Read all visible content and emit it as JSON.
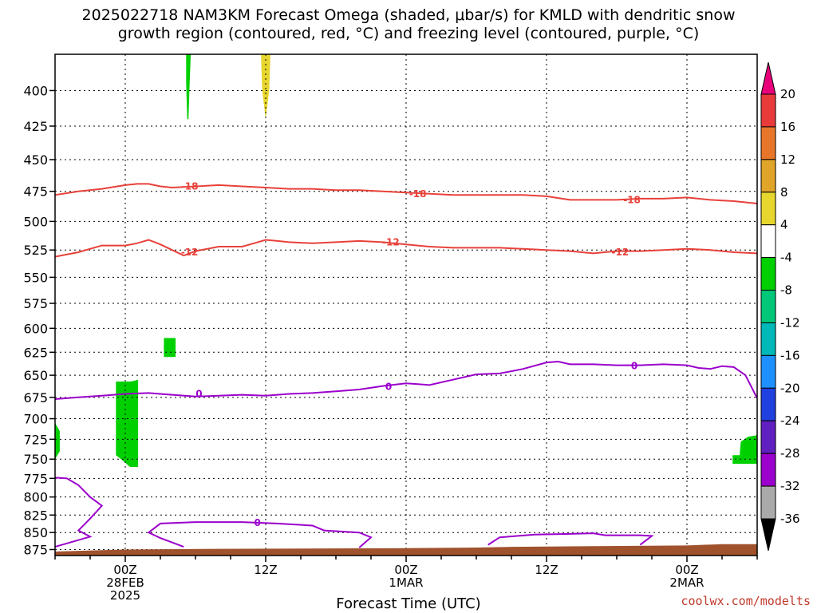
{
  "title": {
    "line1": "2025022718 NAM3KM Forecast Omega (shaded, μbar/s) for KMLD with dendritic snow",
    "line2": "growth region (contoured, red, °C) and freezing level (contoured, purple, °C)"
  },
  "credit": "coolwx.com/modelts",
  "colors": {
    "dgz": "#e8413a",
    "freezing": "#9b00cc",
    "ground": "#a0522d",
    "omega_green": "#00d000",
    "omega_yellow": "#e6d62e"
  },
  "chart_data": {
    "type": "heatmap",
    "xlabel": "Forecast Time (UTC)",
    "ylabel": "",
    "x_range_hours": [
      -6,
      54
    ],
    "y_range_hpa": [
      376,
      884
    ],
    "y_scale": "log-pressure, inverted",
    "grid": true,
    "y_ticks": [
      400,
      425,
      450,
      475,
      500,
      525,
      550,
      575,
      600,
      625,
      650,
      675,
      700,
      725,
      750,
      775,
      800,
      825,
      850,
      875
    ],
    "x_ticks": [
      {
        "hour": 0,
        "lines": [
          "00Z",
          "28FEB",
          "2025"
        ]
      },
      {
        "hour": 12,
        "lines": [
          "12Z"
        ]
      },
      {
        "hour": 24,
        "lines": [
          "00Z",
          "1MAR"
        ]
      },
      {
        "hour": 36,
        "lines": [
          "12Z"
        ]
      },
      {
        "hour": 48,
        "lines": [
          "00Z",
          "2MAR"
        ]
      }
    ],
    "colorbar": {
      "labels": [
        "20",
        "16",
        "12",
        "8",
        "4",
        "-4",
        "-8",
        "-12",
        "-16",
        "-20",
        "-24",
        "-28",
        "-32",
        "-36"
      ],
      "colors": [
        "#e8007a",
        "#e83a3a",
        "#e8762a",
        "#e0a428",
        "#e6d62e",
        "#ffffff",
        "#00d000",
        "#00c878",
        "#00b8b8",
        "#1e90ff",
        "#2040e0",
        "#6020c0",
        "#9b00cc",
        "#aaaaaa",
        "#000000"
      ]
    },
    "series": [
      {
        "name": "-18",
        "color": "#e8413a",
        "points": [
          [
            -6,
            478
          ],
          [
            -4,
            475
          ],
          [
            -2,
            473
          ],
          [
            0,
            470
          ],
          [
            1,
            469
          ],
          [
            2,
            469
          ],
          [
            3,
            471
          ],
          [
            4,
            472
          ],
          [
            6,
            471
          ],
          [
            8,
            470
          ],
          [
            10,
            471
          ],
          [
            12,
            472
          ],
          [
            14,
            473
          ],
          [
            16,
            473
          ],
          [
            18,
            474
          ],
          [
            20,
            474
          ],
          [
            22,
            475
          ],
          [
            24,
            476
          ],
          [
            26,
            477
          ],
          [
            28,
            478
          ],
          [
            30,
            478
          ],
          [
            32,
            478
          ],
          [
            34,
            478
          ],
          [
            36,
            479
          ],
          [
            38,
            482
          ],
          [
            40,
            482
          ],
          [
            42,
            482
          ],
          [
            44,
            481
          ],
          [
            46,
            481
          ],
          [
            48,
            480
          ],
          [
            50,
            482
          ],
          [
            52,
            483
          ],
          [
            54,
            485
          ]
        ]
      },
      {
        "name": "-12",
        "color": "#e8413a",
        "points": [
          [
            -6,
            531
          ],
          [
            -4,
            527
          ],
          [
            -2,
            521
          ],
          [
            0,
            521
          ],
          [
            1,
            519
          ],
          [
            2,
            516
          ],
          [
            3,
            520
          ],
          [
            4,
            525
          ],
          [
            5,
            530
          ],
          [
            6,
            526
          ],
          [
            8,
            522
          ],
          [
            10,
            522
          ],
          [
            11,
            519
          ],
          [
            12,
            516
          ],
          [
            13,
            517
          ],
          [
            14,
            518
          ],
          [
            16,
            519
          ],
          [
            18,
            518
          ],
          [
            20,
            517
          ],
          [
            22,
            518
          ],
          [
            24,
            520
          ],
          [
            26,
            522
          ],
          [
            28,
            523
          ],
          [
            30,
            523
          ],
          [
            32,
            523
          ],
          [
            34,
            524
          ],
          [
            36,
            525
          ],
          [
            38,
            526
          ],
          [
            40,
            528
          ],
          [
            42,
            526
          ],
          [
            44,
            526
          ],
          [
            46,
            525
          ],
          [
            48,
            524
          ],
          [
            50,
            525
          ],
          [
            52,
            527
          ],
          [
            54,
            528
          ]
        ]
      },
      {
        "name": "0",
        "color": "#9b00cc",
        "points": [
          [
            -6,
            677
          ],
          [
            -4,
            675
          ],
          [
            -2,
            673
          ],
          [
            0,
            671
          ],
          [
            2,
            670
          ],
          [
            4,
            672
          ],
          [
            6,
            674
          ],
          [
            8,
            673
          ],
          [
            10,
            672
          ],
          [
            12,
            673
          ],
          [
            14,
            671
          ],
          [
            16,
            670
          ],
          [
            18,
            668
          ],
          [
            20,
            666
          ],
          [
            22,
            662
          ],
          [
            24,
            659
          ],
          [
            25,
            660
          ],
          [
            26,
            661
          ],
          [
            28,
            655
          ],
          [
            30,
            649
          ],
          [
            32,
            648
          ],
          [
            34,
            643
          ],
          [
            36,
            636
          ],
          [
            37,
            635
          ],
          [
            38,
            638
          ],
          [
            40,
            638
          ],
          [
            42,
            639
          ],
          [
            44,
            639
          ],
          [
            46,
            638
          ],
          [
            48,
            639
          ],
          [
            49,
            642
          ],
          [
            50,
            643
          ],
          [
            51,
            640
          ],
          [
            52,
            641
          ],
          [
            53,
            650
          ],
          [
            54,
            676
          ]
        ]
      },
      {
        "name": "0",
        "color": "#9b00cc",
        "points": [
          [
            -6,
            774
          ],
          [
            -5,
            775
          ],
          [
            -4,
            784
          ],
          [
            -3,
            800
          ],
          [
            -2,
            812
          ],
          [
            -3,
            830
          ],
          [
            -4,
            847
          ],
          [
            -3,
            856
          ],
          [
            -6,
            871
          ]
        ]
      },
      {
        "name": "0",
        "color": "#9b00cc",
        "points": [
          [
            5,
            871
          ],
          [
            3,
            858
          ],
          [
            2,
            850
          ],
          [
            3,
            837
          ],
          [
            6,
            835
          ],
          [
            10,
            835
          ],
          [
            13,
            837
          ],
          [
            16,
            840
          ],
          [
            17,
            847
          ],
          [
            18,
            848
          ],
          [
            20,
            850
          ],
          [
            21,
            857
          ],
          [
            20,
            872
          ]
        ]
      },
      {
        "name": "0",
        "color": "#9b00cc",
        "points": [
          [
            31,
            868
          ],
          [
            32,
            857
          ],
          [
            35,
            853
          ],
          [
            38,
            852
          ],
          [
            40,
            851
          ],
          [
            41,
            854
          ],
          [
            44,
            854
          ],
          [
            45,
            855
          ],
          [
            44,
            868
          ]
        ]
      }
    ],
    "contour_labels": [
      {
        "text": "-18",
        "x": 5.5,
        "y": 471
      },
      {
        "text": "-18",
        "x": 25,
        "y": 477
      },
      {
        "text": "-18",
        "x": 43.3,
        "y": 482
      },
      {
        "text": "-12",
        "x": 5.5,
        "y": 527
      },
      {
        "text": "-12",
        "x": 22.7,
        "y": 518
      },
      {
        "text": "-12",
        "x": 42.3,
        "y": 527
      },
      {
        "text": "0",
        "x": 6.3,
        "y": 671
      },
      {
        "text": "0",
        "x": 22.5,
        "y": 663
      },
      {
        "text": "0",
        "x": 43.5,
        "y": 640
      },
      {
        "text": "0",
        "x": 11.3,
        "y": 836
      }
    ],
    "omega_regions": [
      {
        "value": -4,
        "color": "#00d000",
        "points": [
          [
            5.2,
            376
          ],
          [
            5.6,
            376
          ],
          [
            5.5,
            395
          ],
          [
            5.4,
            420
          ],
          [
            5.3,
            420
          ],
          [
            5.2,
            395
          ]
        ]
      },
      {
        "value": 4,
        "color": "#e6d62e",
        "points": [
          [
            11.6,
            376
          ],
          [
            12.4,
            376
          ],
          [
            12.3,
            400
          ],
          [
            12.0,
            420
          ],
          [
            11.7,
            400
          ]
        ]
      },
      {
        "value": -4,
        "color": "#00d000",
        "points": [
          [
            3.3,
            610
          ],
          [
            4.3,
            610
          ],
          [
            4.3,
            630
          ],
          [
            3.3,
            630
          ]
        ]
      },
      {
        "value": -4,
        "color": "#00d000",
        "points": [
          [
            -0.8,
            657
          ],
          [
            0.5,
            657
          ],
          [
            1.1,
            655
          ],
          [
            1.1,
            760
          ],
          [
            0.4,
            760
          ],
          [
            -0.2,
            752
          ],
          [
            -0.8,
            745
          ]
        ]
      },
      {
        "value": -4,
        "color": "#00d000",
        "points": [
          [
            -6,
            705
          ],
          [
            -5.6,
            715
          ],
          [
            -5.6,
            740
          ],
          [
            -6,
            750
          ]
        ]
      },
      {
        "value": -4,
        "color": "#00d000",
        "points": [
          [
            54,
            720
          ],
          [
            53.2,
            722
          ],
          [
            52.6,
            728
          ],
          [
            52.5,
            745
          ],
          [
            51.9,
            745
          ],
          [
            51.9,
            756
          ],
          [
            54,
            756
          ]
        ]
      }
    ],
    "ground": [
      [
        -6,
        878
      ],
      [
        -2,
        876
      ],
      [
        0,
        875
      ],
      [
        8,
        874
      ],
      [
        24,
        873
      ],
      [
        30,
        872
      ],
      [
        33,
        871
      ],
      [
        40,
        870
      ],
      [
        48,
        869
      ],
      [
        51,
        867
      ],
      [
        54,
        867
      ]
    ]
  }
}
